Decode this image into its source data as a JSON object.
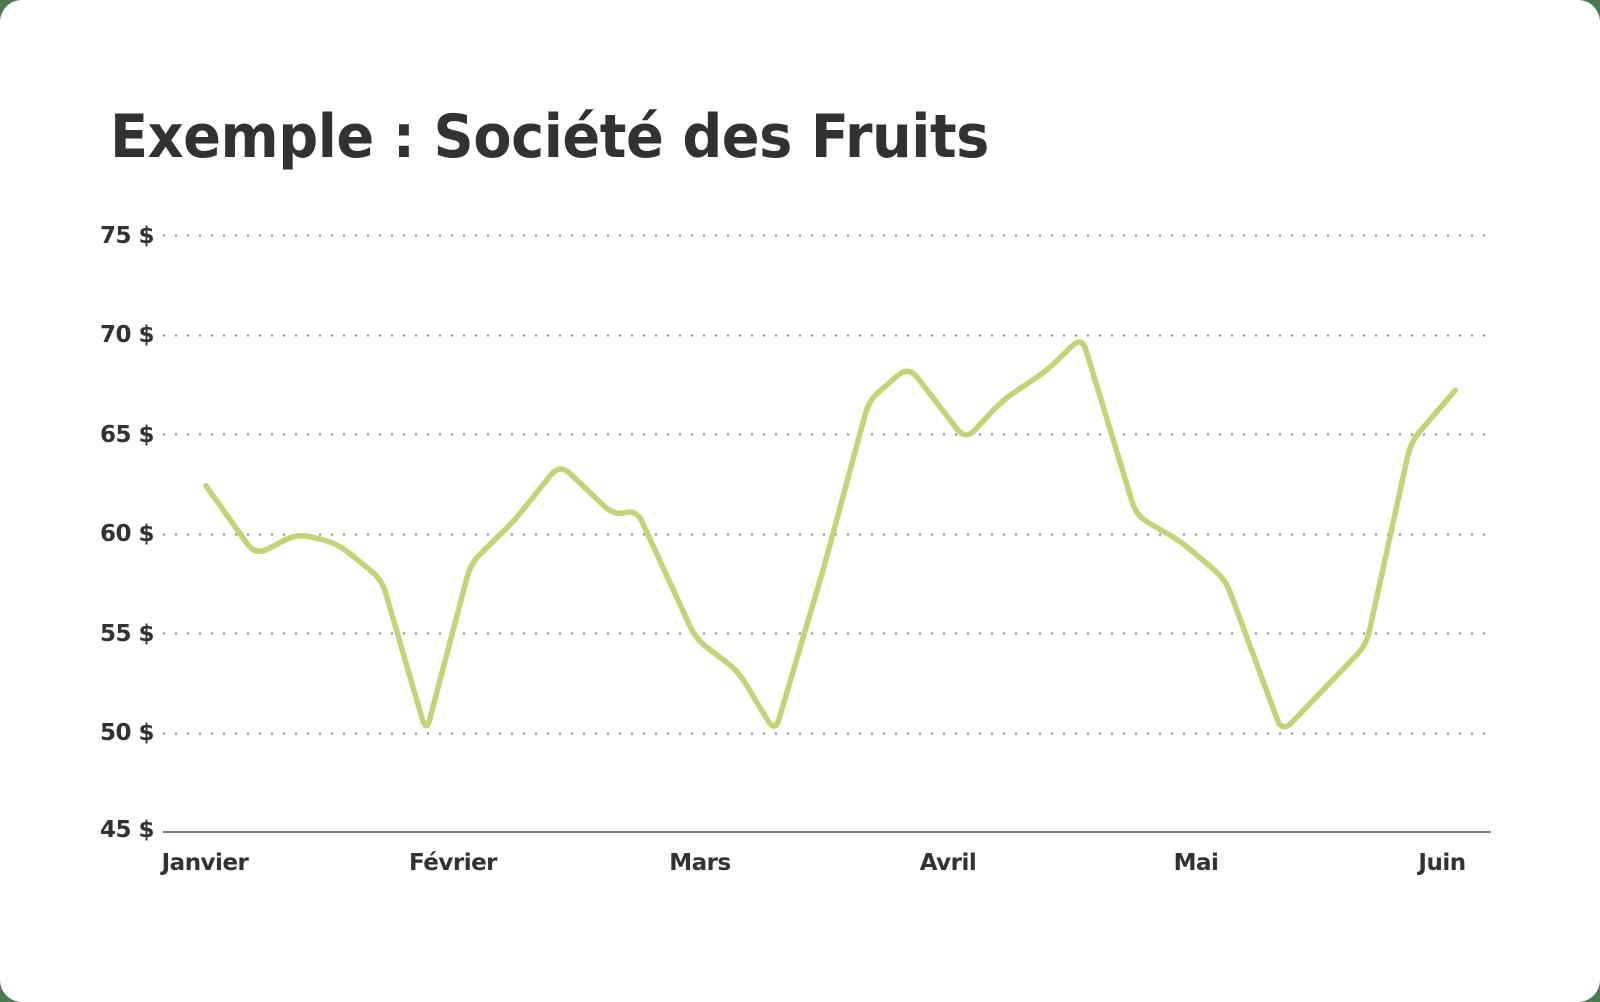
{
  "title": "Exemple : Société des Fruits",
  "colors": {
    "background": "#4d7a4c",
    "card": "#ffffff",
    "text": "#333231",
    "line": "#c1d477",
    "grid": "#8a8a8a",
    "axis": "#7a7a7a"
  },
  "y_axis": {
    "labels": [
      "75 $",
      "70 $",
      "65 $",
      "60 $",
      "55 $",
      "50 $",
      "45 $"
    ]
  },
  "x_axis": {
    "labels": [
      "Janvier",
      "Février",
      "Mars",
      "Avril",
      "Mai",
      "Juin"
    ]
  },
  "chart_data": {
    "type": "line",
    "title": "Exemple : Société des Fruits",
    "xlabel": "",
    "ylabel": "",
    "categories": [
      "Janvier",
      "Février",
      "Mars",
      "Avril",
      "Mai",
      "Juin"
    ],
    "ylim": [
      45,
      75
    ],
    "yticks": [
      45,
      50,
      55,
      60,
      65,
      70,
      75
    ],
    "ytick_format": "{v} $",
    "grid": "horizontal dotted",
    "legend": "none",
    "series": [
      {
        "name": "Société des Fruits",
        "x_month_index": [
          0.0,
          0.2,
          0.37,
          0.53,
          0.71,
          0.89,
          1.07,
          1.25,
          1.43,
          1.65,
          1.74,
          1.98,
          2.15,
          2.3,
          2.5,
          2.68,
          2.84,
          3.07,
          3.22,
          3.4,
          3.54,
          3.76,
          3.94,
          4.12,
          4.35,
          4.52,
          4.69,
          4.87,
          5.05
        ],
        "values": [
          62.4,
          58.9,
          60.0,
          59.5,
          57.7,
          50.0,
          58.5,
          60.7,
          63.5,
          60.9,
          61.2,
          54.7,
          53.1,
          50.0,
          58.4,
          66.7,
          68.4,
          64.7,
          66.7,
          68.2,
          69.9,
          60.9,
          59.6,
          57.7,
          50.0,
          52.2,
          54.4,
          64.6,
          67.2
        ]
      }
    ]
  }
}
